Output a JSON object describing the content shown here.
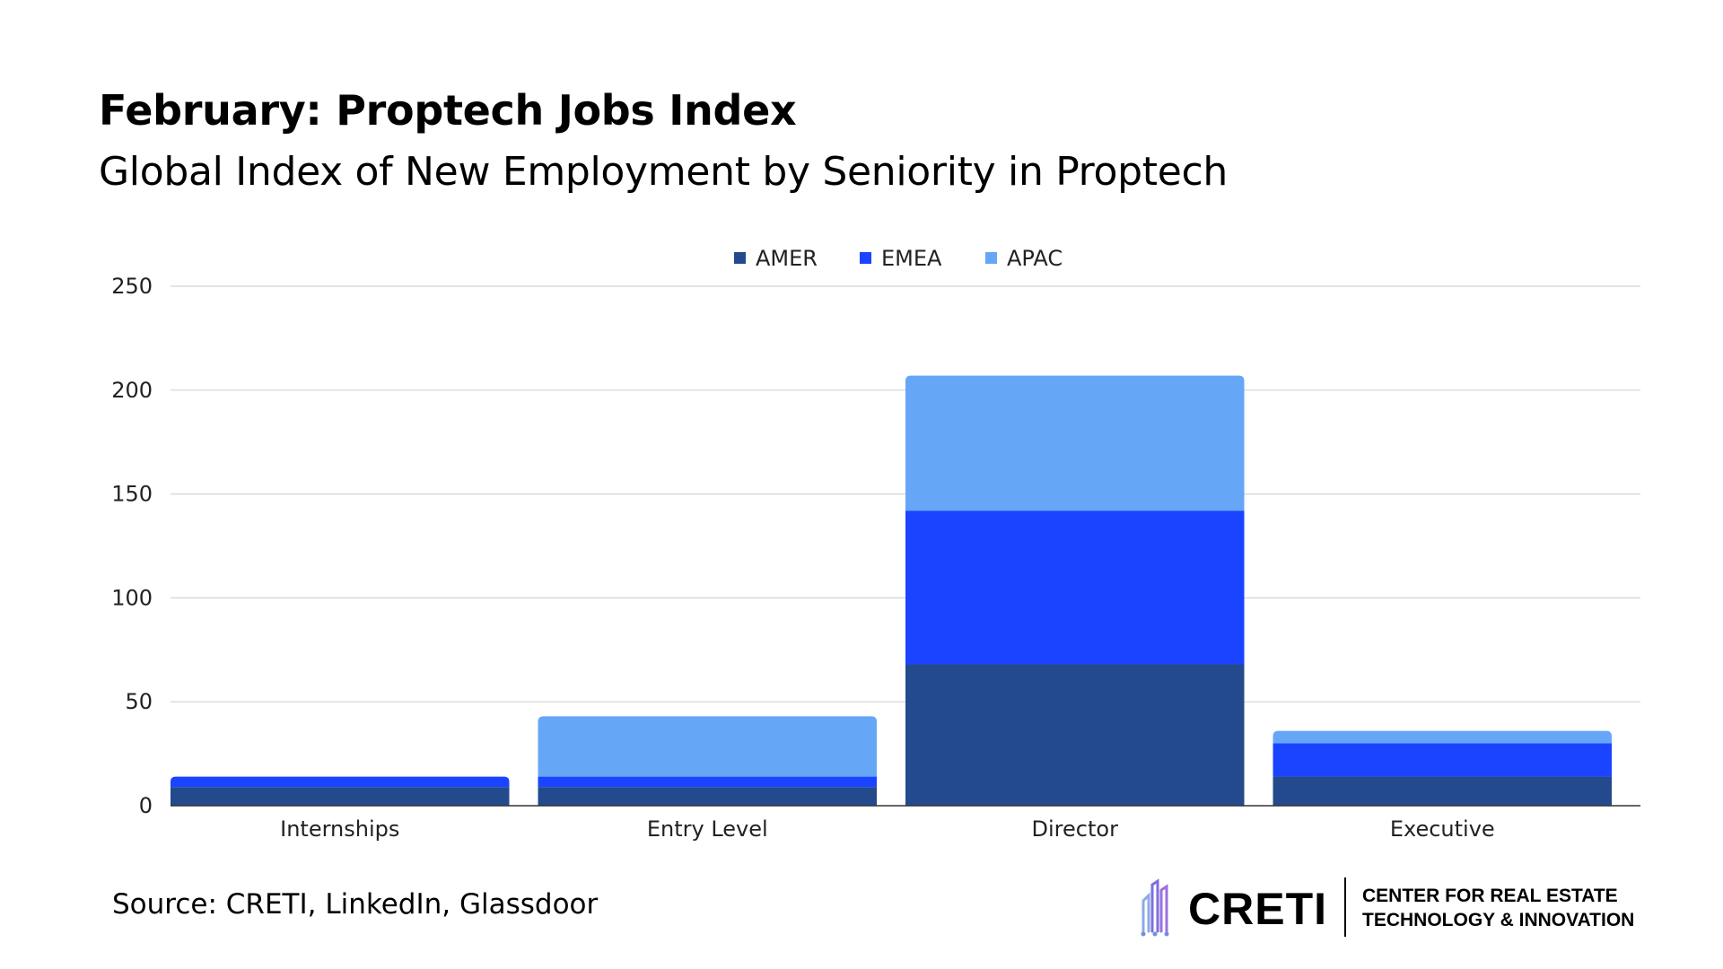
{
  "header": {
    "title": "February: Proptech Jobs Index",
    "subtitle": "Global Index of New Employment by Seniority in Proptech"
  },
  "chart_data": {
    "type": "bar",
    "stacked": true,
    "categories": [
      "Internships",
      "Entry Level",
      "Director",
      "Executive"
    ],
    "series": [
      {
        "name": "AMER",
        "color": "#224A8C",
        "values": [
          9,
          9,
          68,
          14
        ]
      },
      {
        "name": "EMEA",
        "color": "#1A44FF",
        "values": [
          5,
          5,
          74,
          16
        ]
      },
      {
        "name": "APAC",
        "color": "#66A6F7",
        "values": [
          0,
          29,
          65,
          6
        ]
      }
    ],
    "y_ticks": [
      0,
      50,
      100,
      150,
      200,
      250
    ],
    "ylim": [
      0,
      250
    ],
    "grid": true,
    "legend_position": "top-center"
  },
  "footer": {
    "source": "Source: CRETI, LinkedIn, Glassdoor",
    "logo_name": "CRETI",
    "logo_line1": "CENTER FOR REAL ESTATE",
    "logo_line2": "TECHNOLOGY & INNOVATION"
  }
}
